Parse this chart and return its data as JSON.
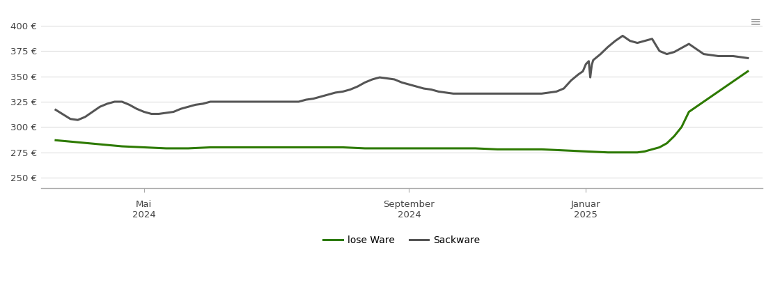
{
  "ylabel": "",
  "background_color": "#ffffff",
  "grid_color": "#dddddd",
  "lose_ware_color": "#2d7a00",
  "sackware_color": "#555555",
  "legend_labels": [
    "lose Ware",
    "Sackware"
  ],
  "yticks": [
    250,
    275,
    300,
    325,
    350,
    375,
    400
  ],
  "ylim": [
    240,
    415
  ],
  "xtick_labels": [
    [
      "Mai",
      "2024"
    ],
    [
      "September",
      "2024"
    ],
    [
      "Januar",
      "2025"
    ]
  ],
  "lose_ware": {
    "x": [
      0,
      15,
      30,
      45,
      60,
      75,
      90,
      105,
      120,
      135,
      150,
      165,
      180,
      195,
      210,
      225,
      240,
      255,
      270,
      285,
      300,
      315,
      330,
      345,
      360,
      375,
      380,
      385,
      390,
      395,
      400,
      405,
      410,
      415,
      420,
      425,
      430,
      440,
      450,
      460,
      470
    ],
    "y": [
      287,
      285,
      283,
      281,
      280,
      279,
      279,
      280,
      280,
      280,
      280,
      280,
      280,
      280,
      279,
      279,
      279,
      279,
      279,
      279,
      278,
      278,
      278,
      277,
      276,
      275,
      275,
      275,
      275,
      275,
      276,
      278,
      280,
      284,
      291,
      300,
      315,
      325,
      335,
      345,
      355
    ]
  },
  "sackware": {
    "x": [
      0,
      10,
      15,
      20,
      25,
      30,
      35,
      40,
      45,
      50,
      55,
      60,
      65,
      70,
      75,
      80,
      85,
      90,
      95,
      100,
      105,
      110,
      115,
      120,
      125,
      130,
      135,
      140,
      145,
      150,
      155,
      160,
      165,
      170,
      175,
      180,
      185,
      190,
      195,
      200,
      205,
      210,
      215,
      220,
      225,
      230,
      235,
      240,
      245,
      250,
      255,
      260,
      265,
      270,
      275,
      280,
      285,
      290,
      295,
      300,
      305,
      310,
      315,
      320,
      325,
      330,
      335,
      340,
      345,
      350,
      355,
      358,
      360,
      362,
      363,
      364,
      365,
      370,
      375,
      380,
      385,
      390,
      395,
      400,
      405,
      410,
      415,
      420,
      425,
      430,
      440,
      450,
      460,
      470
    ],
    "y": [
      317,
      308,
      307,
      310,
      315,
      320,
      323,
      325,
      325,
      322,
      318,
      315,
      313,
      313,
      314,
      315,
      318,
      320,
      322,
      323,
      325,
      325,
      325,
      325,
      325,
      325,
      325,
      325,
      325,
      325,
      325,
      325,
      325,
      327,
      328,
      330,
      332,
      334,
      335,
      337,
      340,
      344,
      347,
      349,
      348,
      347,
      344,
      342,
      340,
      338,
      337,
      335,
      334,
      333,
      333,
      333,
      333,
      333,
      333,
      333,
      333,
      333,
      333,
      333,
      333,
      333,
      334,
      335,
      338,
      346,
      352,
      355,
      362,
      365,
      349,
      361,
      366,
      372,
      379,
      385,
      390,
      385,
      383,
      385,
      387,
      375,
      372,
      374,
      378,
      382,
      372,
      370,
      370,
      368
    ]
  }
}
